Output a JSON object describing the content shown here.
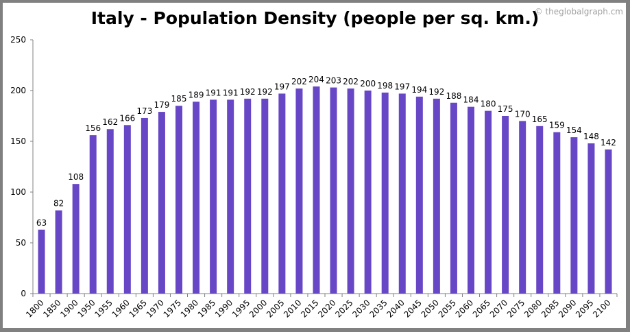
{
  "chart_data": {
    "type": "bar",
    "title": "Italy - Population Density (people per sq. km.)",
    "credit": "© theglobalgraph.cm",
    "categories": [
      "1800",
      "1850",
      "1900",
      "1950",
      "1955",
      "1960",
      "1965",
      "1970",
      "1975",
      "1980",
      "1985",
      "1990",
      "1995",
      "2000",
      "2005",
      "2010",
      "2015",
      "2020",
      "2025",
      "2030",
      "2035",
      "2040",
      "2045",
      "2050",
      "2055",
      "2060",
      "2065",
      "2070",
      "2075",
      "2080",
      "2085",
      "2090",
      "2095",
      "2100"
    ],
    "values": [
      63,
      82,
      108,
      156,
      162,
      166,
      173,
      179,
      185,
      189,
      191,
      191,
      192,
      192,
      197,
      202,
      204,
      203,
      202,
      200,
      198,
      197,
      194,
      192,
      188,
      184,
      180,
      175,
      170,
      165,
      159,
      154,
      148,
      142
    ],
    "ylim": [
      0,
      250
    ],
    "yticks": [
      0,
      50,
      100,
      150,
      200,
      250
    ],
    "grid": false,
    "legend": "none",
    "bar_color": "#6847C6",
    "xlabel": "",
    "ylabel": ""
  }
}
